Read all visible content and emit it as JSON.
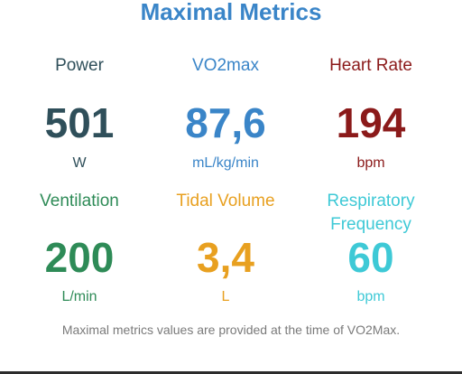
{
  "title": "Maximal Metrics",
  "colors": {
    "title": "#3a85c8",
    "power": "#2f4f5a",
    "vo2max": "#3a85c8",
    "heart_rate": "#8b1a1a",
    "ventilation": "#2e8b57",
    "tidal_volume": "#e8a020",
    "respiratory_frequency": "#3ec9d6"
  },
  "metrics": {
    "power": {
      "label": "Power",
      "value": "501",
      "unit": "W"
    },
    "vo2max": {
      "label": "VO2max",
      "value": "87,6",
      "unit": "mL/kg/min"
    },
    "heart_rate": {
      "label": "Heart Rate",
      "value": "194",
      "unit": "bpm"
    },
    "ventilation": {
      "label": "Ventilation",
      "value": "200",
      "unit": "L/min"
    },
    "tidal_volume": {
      "label": "Tidal Volume",
      "value": "3,4",
      "unit": "L"
    },
    "respiratory_frequency": {
      "label_line1": "Respiratory",
      "label_line2": "Frequency",
      "value": "60",
      "unit": "bpm"
    }
  },
  "footnote": "Maximal metrics values are provided at the time of VO2Max."
}
